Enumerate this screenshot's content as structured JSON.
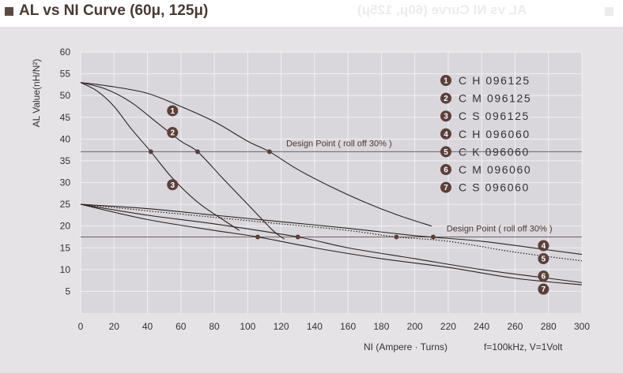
{
  "header": {
    "title": "AL vs NI Curve (60μ, 125μ)"
  },
  "chart_data": {
    "type": "line",
    "xlabel": "NI (Ampere · Turns)",
    "ylabel": "AL Value(nH/N²)",
    "condition": "f=100kHz, V=1Volt",
    "xlim": [
      0,
      300
    ],
    "ylim": [
      0,
      60
    ],
    "x_ticks": [
      "0",
      "20",
      "40",
      "60",
      "80",
      "100",
      "120",
      "140",
      "160",
      "180",
      "200",
      "220",
      "240",
      "260",
      "280",
      "300"
    ],
    "y_ticks": [
      "5",
      "10",
      "15",
      "20",
      "25",
      "30",
      "35",
      "40",
      "45",
      "50",
      "55",
      "60"
    ],
    "grid": true,
    "design_points": [
      {
        "label": "Design Point ( roll off 30% )",
        "y": 37.1
      },
      {
        "label": "Design Point ( roll off 30% )",
        "y": 17.5
      }
    ],
    "series": [
      {
        "name": "C H 096125",
        "badge": "1",
        "style": "solid",
        "x": [
          0,
          20,
          40,
          60,
          80,
          100,
          113,
          130,
          150,
          170,
          190,
          210
        ],
        "y": [
          53,
          52,
          50.5,
          47.5,
          44,
          39.5,
          37.1,
          33,
          29,
          25.5,
          22.5,
          20
        ]
      },
      {
        "name": "C M 096125",
        "badge": "2",
        "style": "solid",
        "x": [
          0,
          15,
          30,
          45,
          60,
          70,
          85,
          100,
          115,
          122
        ],
        "y": [
          53,
          51.5,
          48.5,
          44,
          39.5,
          37.1,
          31,
          25,
          19,
          17
        ]
      },
      {
        "name": "C S 096125",
        "badge": "3",
        "style": "solid",
        "x": [
          0,
          10,
          20,
          30,
          42,
          55,
          70,
          85,
          95
        ],
        "y": [
          53,
          51,
          47.5,
          42.5,
          37.1,
          31,
          25.5,
          21.5,
          19
        ]
      },
      {
        "name": "C H 096060",
        "badge": "4",
        "style": "solid",
        "x": [
          0,
          40,
          80,
          120,
          160,
          200,
          240,
          280,
          300
        ],
        "y": [
          25,
          24,
          22.5,
          21,
          19.5,
          17.8,
          16.5,
          14.5,
          13.5
        ]
      },
      {
        "name": "C K 096060",
        "badge": "5",
        "style": "dotted",
        "x": [
          0,
          40,
          80,
          120,
          160,
          189,
          220,
          260,
          300
        ],
        "y": [
          25,
          23.5,
          22,
          20.5,
          19,
          17.5,
          16.5,
          14,
          12
        ]
      },
      {
        "name": "C M 096060",
        "badge": "6",
        "style": "solid",
        "x": [
          0,
          40,
          80,
          130,
          160,
          200,
          240,
          280,
          300
        ],
        "y": [
          25,
          22.5,
          20.5,
          17.5,
          15,
          12.5,
          10,
          8,
          7
        ]
      },
      {
        "name": "C S 096060",
        "badge": "7",
        "style": "solid",
        "x": [
          0,
          40,
          80,
          106,
          140,
          180,
          220,
          260,
          300
        ],
        "y": [
          25,
          21.5,
          19,
          17.5,
          15,
          12.5,
          10.5,
          8,
          6.5
        ]
      }
    ],
    "markers": [
      {
        "x": 113,
        "y": 37.1
      },
      {
        "x": 70,
        "y": 37.1
      },
      {
        "x": 42,
        "y": 37.1
      },
      {
        "x": 106,
        "y": 17.5
      },
      {
        "x": 130,
        "y": 17.5
      },
      {
        "x": 189,
        "y": 17.5
      },
      {
        "x": 211,
        "y": 17.5
      }
    ],
    "curve_badges": [
      {
        "badge": "1",
        "x": 55,
        "y": 46.5
      },
      {
        "badge": "2",
        "x": 55,
        "y": 41.5
      },
      {
        "badge": "3",
        "x": 55,
        "y": 29.5
      },
      {
        "badge": "4",
        "x": 277,
        "y": 15.5
      },
      {
        "badge": "5",
        "x": 277,
        "y": 12.5
      },
      {
        "badge": "6",
        "x": 277,
        "y": 8.5
      },
      {
        "badge": "7",
        "x": 277,
        "y": 5.5
      }
    ]
  },
  "colors": {
    "plot_bg": "#d9d6dc",
    "panel_bg": "#e6e3e6",
    "grid": "#f2f0f3",
    "curve": "#2b2422",
    "badge": "#5b403a",
    "title": "#4a3a33"
  }
}
